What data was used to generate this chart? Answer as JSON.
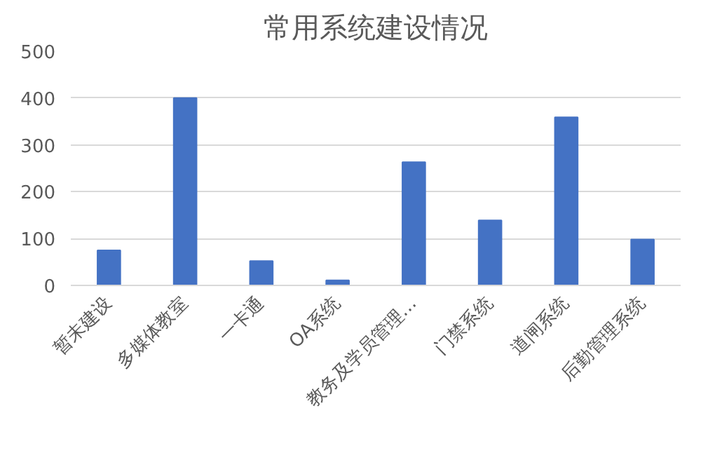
{
  "chart_data": {
    "type": "bar",
    "title": "常用系统建设情况",
    "categories": [
      "暂未建设",
      "多媒体教室",
      "一卡通",
      "OA系统",
      "教务及学员管理…",
      "门禁系统",
      "道闸系统",
      "后勤管理系统"
    ],
    "values": [
      75,
      400,
      52,
      11,
      263,
      139,
      359,
      98
    ],
    "color": "#4472c4",
    "ylim": [
      0,
      500
    ],
    "yticks": [
      0,
      100,
      200,
      300,
      400,
      500
    ],
    "grid": "y"
  }
}
